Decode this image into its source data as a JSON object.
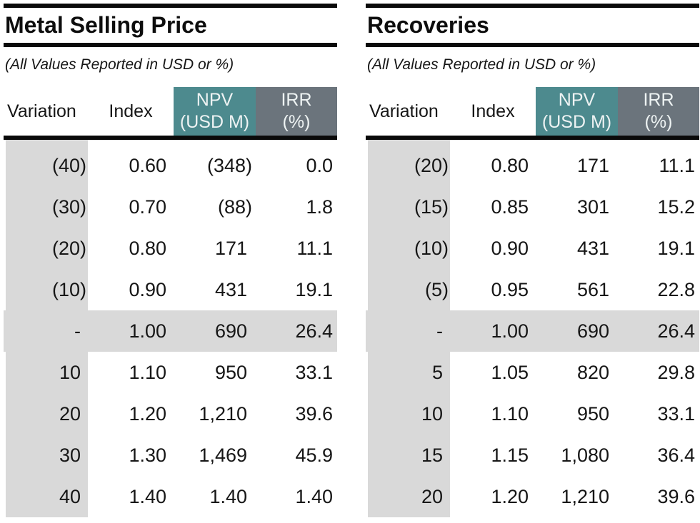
{
  "subtitle": "(All Values Reported in USD or %)",
  "columns": {
    "variation": "Variation",
    "index": "Index",
    "npv": [
      "NPV",
      "(USD M)"
    ],
    "irr": [
      "IRR",
      "(%)"
    ]
  },
  "colors": {
    "rule": "#0a0a0a",
    "npv_header_bg": "#4d8a8e",
    "irr_header_bg": "#6b747c",
    "header_text": "#eef3f3",
    "band_bg": "#d9d9d9"
  },
  "tables": [
    {
      "title": "Metal Selling Price",
      "rows": [
        {
          "variation": "(40)",
          "index": "0.60",
          "npv": "(348)",
          "irr": "0.0",
          "highlight": false
        },
        {
          "variation": "(30)",
          "index": "0.70",
          "npv": "(88)",
          "irr": "1.8",
          "highlight": false
        },
        {
          "variation": "(20)",
          "index": "0.80",
          "npv": "171",
          "irr": "11.1",
          "highlight": false
        },
        {
          "variation": "(10)",
          "index": "0.90",
          "npv": "431",
          "irr": "19.1",
          "highlight": false
        },
        {
          "variation": "-",
          "index": "1.00",
          "npv": "690",
          "irr": "26.4",
          "highlight": true
        },
        {
          "variation": "10",
          "index": "1.10",
          "npv": "950",
          "irr": "33.1",
          "highlight": false
        },
        {
          "variation": "20",
          "index": "1.20",
          "npv": "1,210",
          "irr": "39.6",
          "highlight": false
        },
        {
          "variation": "30",
          "index": "1.30",
          "npv": "1,469",
          "irr": "45.9",
          "highlight": false
        },
        {
          "variation": "40",
          "index": "1.40",
          "npv": "1.40",
          "irr": "1.40",
          "highlight": false
        }
      ]
    },
    {
      "title": "Recoveries",
      "rows": [
        {
          "variation": "(20)",
          "index": "0.80",
          "npv": "171",
          "irr": "11.1",
          "highlight": false
        },
        {
          "variation": "(15)",
          "index": "0.85",
          "npv": "301",
          "irr": "15.2",
          "highlight": false
        },
        {
          "variation": "(10)",
          "index": "0.90",
          "npv": "431",
          "irr": "19.1",
          "highlight": false
        },
        {
          "variation": "(5)",
          "index": "0.95",
          "npv": "561",
          "irr": "22.8",
          "highlight": false
        },
        {
          "variation": "-",
          "index": "1.00",
          "npv": "690",
          "irr": "26.4",
          "highlight": true
        },
        {
          "variation": "5",
          "index": "1.05",
          "npv": "820",
          "irr": "29.8",
          "highlight": false
        },
        {
          "variation": "10",
          "index": "1.10",
          "npv": "950",
          "irr": "33.1",
          "highlight": false
        },
        {
          "variation": "15",
          "index": "1.15",
          "npv": "1,080",
          "irr": "36.4",
          "highlight": false
        },
        {
          "variation": "20",
          "index": "1.20",
          "npv": "1,210",
          "irr": "39.6",
          "highlight": false
        }
      ]
    }
  ]
}
